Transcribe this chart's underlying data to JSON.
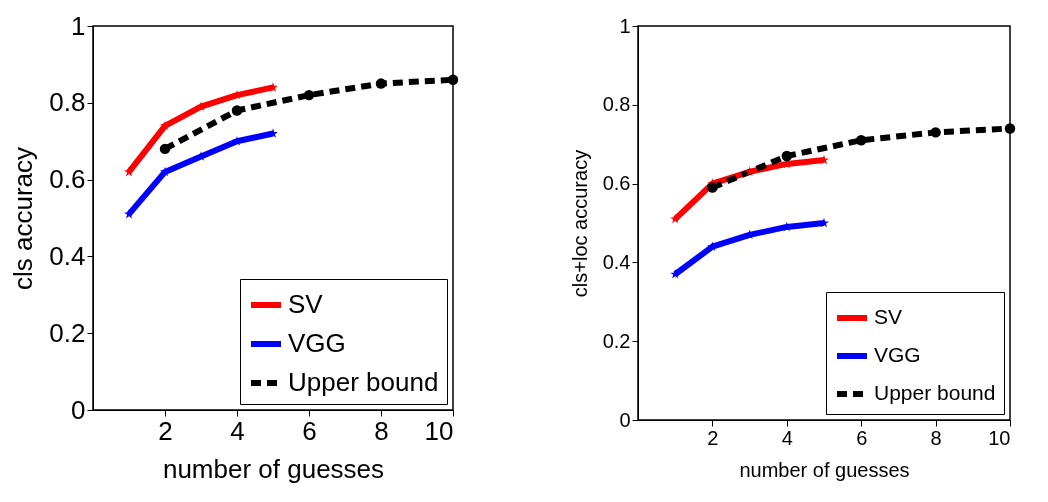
{
  "chart_data": [
    {
      "type": "line",
      "xlabel": "number of guesses",
      "ylabel": "cls accuracy",
      "xlim": [
        0,
        10
      ],
      "xticks": [
        2,
        4,
        6,
        8,
        10
      ],
      "ylim": [
        0,
        1
      ],
      "yticks": [
        0,
        0.2,
        0.4,
        0.6,
        0.8,
        1
      ],
      "grid": false,
      "legend": "bottom right",
      "series": [
        {
          "name": "SV",
          "color": "#ff0000",
          "marker": "star",
          "line_style": "solid",
          "x": [
            1,
            2,
            3,
            4,
            5
          ],
          "values": [
            0.62,
            0.74,
            0.79,
            0.82,
            0.84
          ]
        },
        {
          "name": "VGG",
          "color": "#0000ff",
          "marker": "star",
          "line_style": "solid",
          "x": [
            1,
            2,
            3,
            4,
            5
          ],
          "values": [
            0.51,
            0.62,
            0.66,
            0.7,
            0.72
          ]
        },
        {
          "name": "Upper bound",
          "color": "#000000",
          "marker": "circle",
          "line_style": "dashed",
          "x": [
            2,
            4,
            6,
            8,
            10
          ],
          "values": [
            0.68,
            0.78,
            0.82,
            0.85,
            0.86
          ]
        }
      ]
    },
    {
      "type": "line",
      "xlabel": "number of guesses",
      "ylabel": "cls+loc accuracy",
      "xlim": [
        0,
        10
      ],
      "xticks": [
        2,
        4,
        6,
        8,
        10
      ],
      "ylim": [
        0,
        1
      ],
      "yticks": [
        0,
        0.2,
        0.4,
        0.6,
        0.8,
        1
      ],
      "grid": false,
      "legend": "bottom right",
      "series": [
        {
          "name": "SV",
          "color": "#ff0000",
          "marker": "star",
          "line_style": "solid",
          "x": [
            1,
            2,
            3,
            4,
            5
          ],
          "values": [
            0.51,
            0.6,
            0.63,
            0.65,
            0.66
          ]
        },
        {
          "name": "VGG",
          "color": "#0000ff",
          "marker": "star",
          "line_style": "solid",
          "x": [
            1,
            2,
            3,
            4,
            5
          ],
          "values": [
            0.37,
            0.44,
            0.47,
            0.49,
            0.5
          ]
        },
        {
          "name": "Upper bound",
          "color": "#000000",
          "marker": "circle",
          "line_style": "dashed",
          "x": [
            2,
            4,
            6,
            8,
            10
          ],
          "values": [
            0.59,
            0.67,
            0.71,
            0.73,
            0.74
          ]
        }
      ]
    }
  ]
}
